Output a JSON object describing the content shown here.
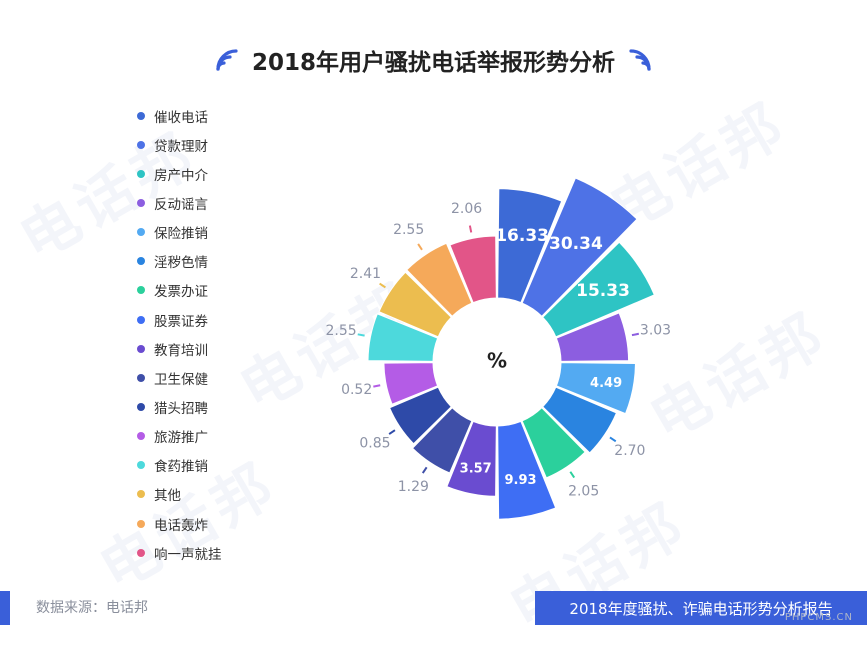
{
  "title": "2018年用户骚扰电话举报形势分析",
  "center_label": "%",
  "footer": {
    "source": "数据来源：电话邦",
    "report": "2018年度骚扰、诈骗电话形势分析报告",
    "site": "PHPCMS.CN"
  },
  "watermark_text": "电话邦",
  "chart_data": {
    "type": "pie",
    "variant": "rose",
    "title": "2018年用户骚扰电话举报形势分析",
    "unit": "%",
    "legend_position": "left",
    "slices": [
      {
        "label": "催收电话",
        "value": 16.33,
        "color": "#3d6ad6"
      },
      {
        "label": "贷款理财",
        "value": 30.34,
        "color": "#4e72e6"
      },
      {
        "label": "房产中介",
        "value": 15.33,
        "color": "#2ec4c4"
      },
      {
        "label": "反动谣言",
        "value": 3.03,
        "color": "#8c5ee0"
      },
      {
        "label": "保险推销",
        "value": 4.49,
        "color": "#53aaf2"
      },
      {
        "label": "淫秽色情",
        "value": 2.7,
        "color": "#2a84e0"
      },
      {
        "label": "发票办证",
        "value": 2.05,
        "color": "#2bd09c"
      },
      {
        "label": "股票证券",
        "value": 9.93,
        "color": "#3e6ef4"
      },
      {
        "label": "教育培训",
        "value": 3.57,
        "color": "#6a4cd0"
      },
      {
        "label": "卫生保健",
        "value": 1.29,
        "color": "#3f4fa8"
      },
      {
        "label": "猎头招聘",
        "value": 0.85,
        "color": "#2e4aa8"
      },
      {
        "label": "旅游推广",
        "value": 0.52,
        "color": "#b45ce6"
      },
      {
        "label": "食药推销",
        "value": 2.55,
        "color": "#4dd9dc"
      },
      {
        "label": "其他",
        "value": 2.41,
        "color": "#ecbd4f"
      },
      {
        "label": "电话轰炸",
        "value": 2.55,
        "color": "#f5a95a"
      },
      {
        "label": "响一声就挂",
        "value": 2.06,
        "color": "#e25588"
      }
    ],
    "legend_order": [
      "催收电话",
      "贷款理财",
      "房产中介",
      "反动谣言",
      "保险推销",
      "淫秽色情",
      "发票办证",
      "股票证券",
      "教育培训",
      "卫生保健",
      "猎头招聘",
      "旅游推广",
      "食药推销",
      "其他",
      "电话轰炸",
      "响一声就挂"
    ],
    "legend_colors": [
      "#3d6ad6",
      "#4e72e6",
      "#2ec4c4",
      "#8c5ee0",
      "#53aaf2",
      "#2a84e0",
      "#2bd09c",
      "#3e6ef4",
      "#6a4cd0",
      "#3f4fa8",
      "#2e4aa8",
      "#b45ce6",
      "#4dd9dc",
      "#ecbd4f",
      "#f5a95a",
      "#e25588"
    ]
  }
}
